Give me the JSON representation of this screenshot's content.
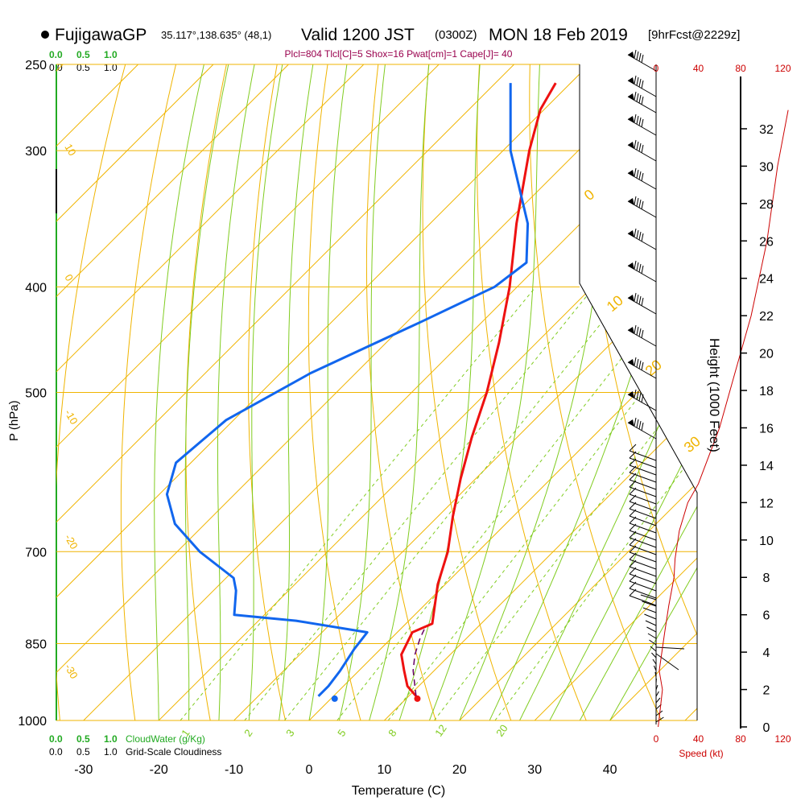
{
  "header": {
    "station": "FujigawaGP",
    "coords": "35.117°,138.635° (48,1)",
    "valid_prefix": "Valid 1200 JST",
    "utc": "(0300Z)",
    "date": "MON 18 Feb 2019",
    "forecast": "[9hrFcst@2229z]",
    "indices": "Plcl=804 Tlcl[C]=5 Shox=16 Pwat[cm]=1 Cape[J]= 40"
  },
  "colors": {
    "temperature": "#ee1111",
    "dewpoint": "#1166ee",
    "isotherm": "#f0b400",
    "dry_adiabat": "#80cc20",
    "mixing_ratio": "#80cc20",
    "parcel": "#660066",
    "wind_speed": "#cc0000",
    "cloud": "#22aa22"
  },
  "cloud_scale": {
    "top_green": [
      "0.0",
      "0.5",
      "1.0"
    ],
    "top_black": [
      "0.0",
      "0.5",
      "1.0"
    ],
    "bottom_green": [
      "0.0",
      "0.5",
      "1.0"
    ],
    "bottom_black": [
      "0.0",
      "0.5",
      "1.0"
    ],
    "cloudwater_label": "CloudWater (g/Kg)",
    "cloudiness_label": "Grid-Scale Cloudiness"
  },
  "speed_axis": {
    "ticks": [
      "0",
      "40",
      "80",
      "120"
    ],
    "label": "Speed (kt)",
    "profile": [
      {
        "kt": 2,
        "ft": 0
      },
      {
        "kt": 4,
        "ft": 1000
      },
      {
        "kt": 6,
        "ft": 2000
      },
      {
        "kt": 3,
        "ft": 3000
      },
      {
        "kt": 8,
        "ft": 5000
      },
      {
        "kt": 12,
        "ft": 6500
      },
      {
        "kt": 17,
        "ft": 8000
      },
      {
        "kt": 18,
        "ft": 9000
      },
      {
        "kt": 22,
        "ft": 10500
      },
      {
        "kt": 30,
        "ft": 12000
      },
      {
        "kt": 40,
        "ft": 13000
      },
      {
        "kt": 60,
        "ft": 16000
      },
      {
        "kt": 75,
        "ft": 19000
      },
      {
        "kt": 90,
        "ft": 22000
      },
      {
        "kt": 105,
        "ft": 26000
      },
      {
        "kt": 115,
        "ft": 30000
      },
      {
        "kt": 125,
        "ft": 33000
      }
    ]
  },
  "height_axis": {
    "label": "Height (1000 Feet)",
    "ticks": [
      "0",
      "2",
      "4",
      "6",
      "8",
      "10",
      "12",
      "14",
      "16",
      "18",
      "20",
      "22",
      "24",
      "26",
      "28",
      "30",
      "32"
    ]
  },
  "chart_data": {
    "type": "line",
    "title": "Skew-T sounding",
    "xlabel": "Temperature (C)",
    "ylabel": "P (hPa)",
    "x_ticks": [
      "-30",
      "-20",
      "-10",
      "0",
      "10",
      "20",
      "30",
      "40"
    ],
    "y_ticks": [
      "250",
      "300",
      "400",
      "500",
      "700",
      "850",
      "1000"
    ],
    "xlim": [
      -35,
      35
    ],
    "ylim": [
      1000,
      250
    ],
    "isotherm_labels": [
      "0",
      "10",
      "20",
      "30",
      "10",
      "0",
      "-10",
      "-20",
      "-30"
    ],
    "mixing_ratio_labels": [
      "1",
      "2",
      "3",
      "5",
      "8",
      "12",
      "20"
    ],
    "series": [
      {
        "role": "temperature",
        "points": [
          {
            "p": 950,
            "t": 11.0
          },
          {
            "p": 930,
            "t": 8.5
          },
          {
            "p": 900,
            "t": 6.0
          },
          {
            "p": 870,
            "t": 3.5
          },
          {
            "p": 830,
            "t": 2.0
          },
          {
            "p": 815,
            "t": 3.5
          },
          {
            "p": 800,
            "t": 2.5
          },
          {
            "p": 750,
            "t": -1.0
          },
          {
            "p": 700,
            "t": -4.0
          },
          {
            "p": 650,
            "t": -8.0
          },
          {
            "p": 600,
            "t": -12.0
          },
          {
            "p": 550,
            "t": -16.0
          },
          {
            "p": 500,
            "t": -20.0
          },
          {
            "p": 450,
            "t": -25.0
          },
          {
            "p": 400,
            "t": -31.0
          },
          {
            "p": 350,
            "t": -38.5
          },
          {
            "p": 300,
            "t": -46.5
          },
          {
            "p": 275,
            "t": -50.5
          },
          {
            "p": 260,
            "t": -52.0
          }
        ]
      },
      {
        "role": "dewpoint",
        "points": [
          {
            "p": 950,
            "t": -2.0
          },
          {
            "p": 930,
            "t": -2.0
          },
          {
            "p": 900,
            "t": -2.5
          },
          {
            "p": 860,
            "t": -3.5
          },
          {
            "p": 830,
            "t": -4.0
          },
          {
            "p": 810,
            "t": -15.0
          },
          {
            "p": 800,
            "t": -24.0
          },
          {
            "p": 760,
            "t": -27.0
          },
          {
            "p": 740,
            "t": -29.0
          },
          {
            "p": 700,
            "t": -37.0
          },
          {
            "p": 660,
            "t": -44.0
          },
          {
            "p": 620,
            "t": -49.0
          },
          {
            "p": 580,
            "t": -52.0
          },
          {
            "p": 530,
            "t": -51.0
          },
          {
            "p": 480,
            "t": -46.0
          },
          {
            "p": 430,
            "t": -38.0
          },
          {
            "p": 400,
            "t": -33.0
          },
          {
            "p": 380,
            "t": -32.0
          },
          {
            "p": 350,
            "t": -37.0
          },
          {
            "p": 300,
            "t": -49.0
          },
          {
            "p": 260,
            "t": -58.0
          }
        ]
      },
      {
        "role": "parcel",
        "points": [
          {
            "p": 950,
            "t": 11.0
          },
          {
            "p": 930,
            "t": 9.5
          },
          {
            "p": 900,
            "t": 7.2
          },
          {
            "p": 870,
            "t": 5.3
          },
          {
            "p": 840,
            "t": 3.8
          },
          {
            "p": 825,
            "t": 3.2
          }
        ]
      }
    ],
    "surface": {
      "p": 955,
      "t": 11.5,
      "td": 0.5
    }
  }
}
